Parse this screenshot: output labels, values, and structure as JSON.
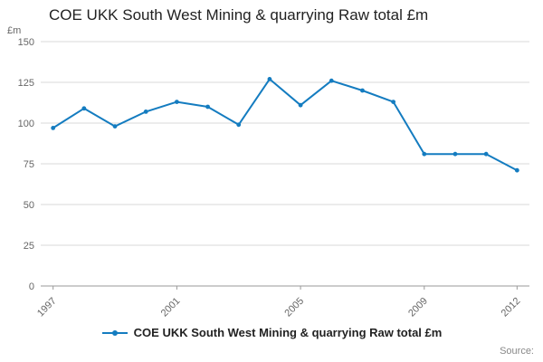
{
  "title": "COE UKK South West Mining & quarrying Raw total £m",
  "legend_label": "COE UKK South West Mining & quarrying Raw total £m",
  "source_label": "Source:",
  "chart_data": {
    "type": "line",
    "title": "COE UKK South West Mining & quarrying Raw total £m",
    "xlabel": "",
    "ylabel": "£m",
    "x": [
      1997,
      1998,
      1999,
      2000,
      2001,
      2002,
      2003,
      2004,
      2005,
      2006,
      2007,
      2008,
      2009,
      2010,
      2011,
      2012
    ],
    "values": [
      97,
      109,
      98,
      107,
      113,
      110,
      99,
      127,
      111,
      126,
      120,
      113,
      81,
      81,
      81,
      71
    ],
    "ylim": [
      0,
      150
    ],
    "yticks": [
      0,
      25,
      50,
      75,
      100,
      125,
      150
    ],
    "xticks": [
      1997,
      2001,
      2005,
      2009,
      2012
    ],
    "grid": true,
    "legend_position": "bottom",
    "line_color": "#147cc0",
    "grid_color": "#d9d9d9",
    "axis_color": "#999999",
    "tick_color": "#666666"
  }
}
